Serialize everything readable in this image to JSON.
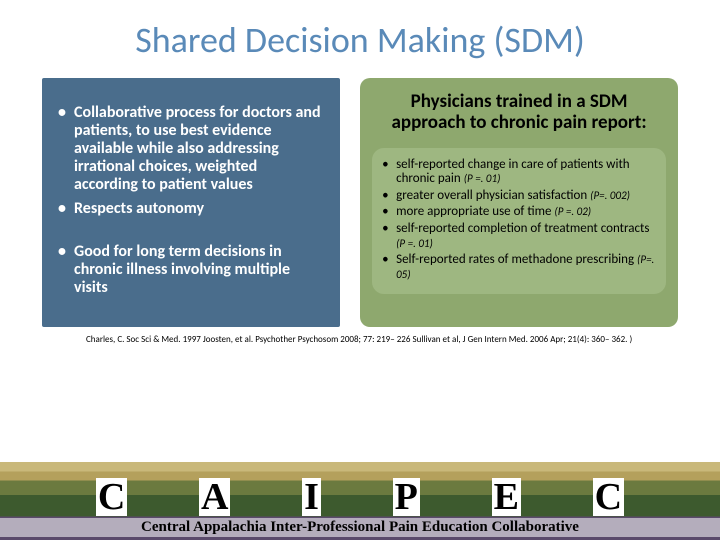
{
  "title": "Shared Decision Making (SDM)",
  "left": {
    "bg": "#4a6d8c",
    "items": [
      "Collaborative process for doctors and patients, to use best evidence available while also addressing irrational choices, weighted according to patient values",
      "Respects autonomy",
      "Good for long term decisions in chronic illness involving multiple visits"
    ]
  },
  "right": {
    "bg": "#8ea86e",
    "inner_bg": "#9eb781",
    "heading": "Physicians trained in a SDM approach to chronic pain report:",
    "items": [
      {
        "text": "self-reported change in care of patients with chronic pain",
        "p": "(P =. 01)"
      },
      {
        "text": "greater overall physician satisfaction",
        "p": "(P=. 002)"
      },
      {
        "text": "more appropriate use of time",
        "p": "(P =. 02)"
      },
      {
        "text": "self-reported completion of treatment contracts",
        "p": "(P =. 01)"
      },
      {
        "text": "Self-reported rates of methadone prescribing",
        "p": "(P=. 05)"
      }
    ]
  },
  "citation": "Charles, C. Soc Sci & Med. 1997 Joosten, et al. Psychother Psychosom 2008; 77: 219– 226 Sullivan et al, J Gen Intern Med. 2006 Apr; 21(4): 360– 362. )",
  "letters": [
    "C",
    "A",
    "I",
    "P",
    "E",
    "C"
  ],
  "footer": "Central Appalachia Inter-Professional Pain Education Collaborative",
  "colors": {
    "title": "#5a8ab8"
  }
}
